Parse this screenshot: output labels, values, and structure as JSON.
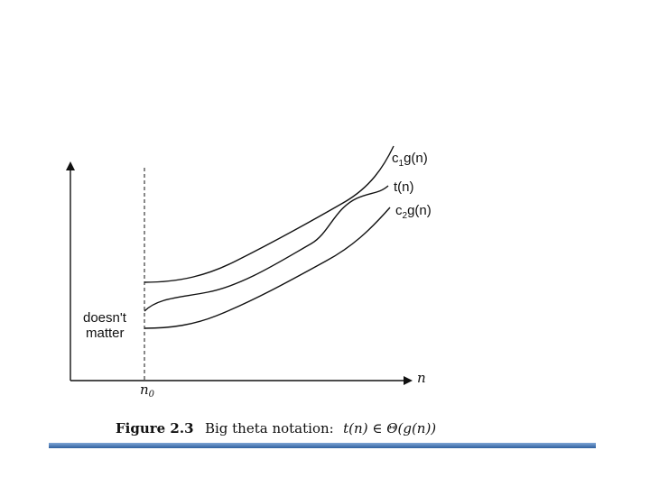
{
  "diagram": {
    "curves": [
      {
        "id": "upper",
        "label_main": "c",
        "label_sub": "1",
        "label_rest": "g(n)"
      },
      {
        "id": "middle",
        "label_main": "t(n)"
      },
      {
        "id": "lower",
        "label_main": "c",
        "label_sub": "2",
        "label_rest": "g(n)"
      }
    ],
    "x_axis_label": "n",
    "threshold_label_main": "n",
    "threshold_label_sub": "0",
    "region_label_line1": "doesn't",
    "region_label_line2": "matter"
  },
  "caption": {
    "figure": "Figure 2.3",
    "text": "Big theta notation:",
    "formula": "t(n) ∈ Θ(g(n))"
  },
  "colors": {
    "ink": "#111111",
    "bar_top": "#7fa6d6",
    "bar_bottom": "#2f5f9e"
  }
}
